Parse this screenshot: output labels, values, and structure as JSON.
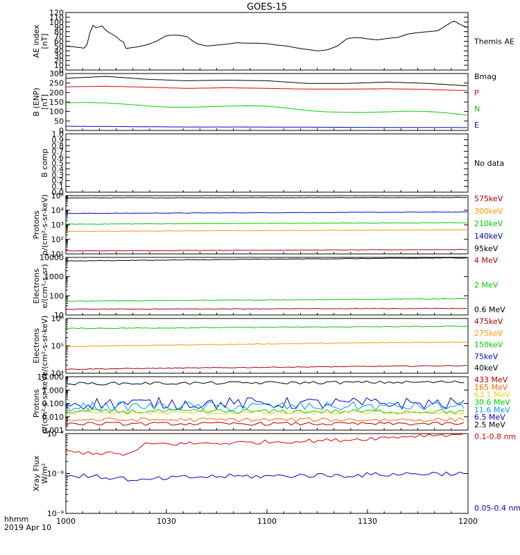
{
  "title": "GOES-15",
  "time_label": {
    "line1": "hhmm",
    "line2": "2019 Apr 10"
  },
  "chart_data": {
    "type": "line",
    "x_ticks": [
      "1000",
      "1030",
      "1100",
      "1130",
      "1200"
    ],
    "x_range": [
      1000,
      1200
    ],
    "panels": [
      {
        "ylabel": [
          "AE index",
          "[nT]"
        ],
        "scale": "linear",
        "ylim": [
          0,
          120
        ],
        "ticks": [
          "0",
          "10",
          "20",
          "30",
          "40",
          "50",
          "60",
          "70",
          "80",
          "90",
          "100",
          "110",
          "120"
        ],
        "legend": [
          {
            "text": "Themis AE",
            "color": "#000000"
          }
        ],
        "series": [
          {
            "name": "Themis AE",
            "color": "#000000",
            "x": [
              1000,
              1005,
              1010,
              1013,
              1015,
              1018,
              1020,
              1025,
              1027,
              1029,
              1030,
              1035,
              1040,
              1045,
              1050,
              1055,
              1060,
              1065,
              1070,
              1075,
              1080,
              1085,
              1090,
              1095,
              1100,
              1105,
              1110,
              1115,
              1120,
              1125,
              1130,
              1135,
              1140,
              1145,
              1150,
              1155,
              1160,
              1165,
              1170,
              1175,
              1180,
              1185,
              1190,
              1193,
              1196,
              1200
            ],
            "y": [
              50,
              48,
              45,
              95,
              88,
              92,
              82,
              70,
              62,
              58,
              45,
              48,
              52,
              60,
              72,
              73,
              70,
              55,
              50,
              52,
              54,
              57,
              56,
              56,
              55,
              52,
              50,
              46,
              43,
              40,
              42,
              50,
              66,
              68,
              65,
              63,
              66,
              68,
              75,
              78,
              80,
              82,
              95,
              103,
              95,
              88
            ]
          }
        ]
      },
      {
        "ylabel": [
          "B (ENP)",
          "[nT]"
        ],
        "scale": "linear",
        "ylim": [
          0,
          300
        ],
        "ticks": [
          "0",
          "50",
          "100",
          "150",
          "200",
          "250",
          "300"
        ],
        "legend": [
          {
            "text": "Bmag",
            "color": "#000000"
          },
          {
            "text": "P",
            "color": "#dd0000"
          },
          {
            "text": "N",
            "color": "#00cc00"
          },
          {
            "text": "E",
            "color": "#0000cc"
          }
        ],
        "series": [
          {
            "name": "Bmag",
            "color": "#000000",
            "x": [
              1000,
              1020,
              1040,
              1060,
              1080,
              1100,
              1120,
              1140,
              1160,
              1180,
              1200
            ],
            "y": [
              275,
              285,
              270,
              262,
              265,
              262,
              248,
              248,
              255,
              248,
              235
            ]
          },
          {
            "name": "P",
            "color": "#dd0000",
            "x": [
              1000,
              1020,
              1040,
              1060,
              1080,
              1100,
              1120,
              1140,
              1160,
              1180,
              1200
            ],
            "y": [
              230,
              233,
              228,
              222,
              225,
              222,
              218,
              218,
              220,
              216,
              210
            ]
          },
          {
            "name": "N",
            "color": "#00cc00",
            "x": [
              1000,
              1010,
              1020,
              1030,
              1040,
              1050,
              1060,
              1070,
              1080,
              1090,
              1100,
              1110,
              1120,
              1130,
              1140,
              1150,
              1160,
              1170,
              1180,
              1190,
              1200
            ],
            "y": [
              145,
              148,
              145,
              138,
              130,
              123,
              122,
              125,
              128,
              130,
              128,
              118,
              105,
              98,
              95,
              95,
              98,
              102,
              100,
              92,
              80
            ]
          },
          {
            "name": "E",
            "color": "#0000cc",
            "x": [
              1000,
              1030,
              1060,
              1090,
              1120,
              1150,
              1200
            ],
            "y": [
              22,
              20,
              18,
              18,
              17,
              16,
              15
            ]
          }
        ]
      },
      {
        "ylabel": [
          "B comp"
        ],
        "scale": "linear",
        "ylim": [
          0,
          1
        ],
        "ticks": [
          "0.0",
          "0.1",
          "0.2",
          "0.3",
          "0.4",
          "0.5",
          "0.6",
          "0.7",
          "0.8",
          "0.9",
          "1.0"
        ],
        "legend": [
          {
            "text": "No data",
            "color": "#000000"
          }
        ],
        "series": []
      },
      {
        "ylabel": [
          "Protons",
          "p/(cm²-s-sr-keV)"
        ],
        "scale": "log",
        "ylim": [
          10,
          100000
        ],
        "ticks": [
          "10¹",
          "10²",
          "10³",
          "10⁴",
          "10⁵"
        ],
        "legend": [
          {
            "text": "575keV",
            "color": "#aa0000"
          },
          {
            "text": "300keV",
            "color": "#ff9900"
          },
          {
            "text": "210keV",
            "color": "#00cc00"
          },
          {
            "text": "140keV",
            "color": "#0000cc"
          },
          {
            "text": "95keV",
            "color": "#000000"
          }
        ],
        "series": [
          {
            "name": "95keV",
            "color": "#000000",
            "x": [
              1000,
              1200
            ],
            "y": [
              70000,
              75000
            ]
          },
          {
            "name": "140keV",
            "color": "#0000cc",
            "x": [
              1000,
              1200
            ],
            "y": [
              6000,
              7500
            ]
          },
          {
            "name": "210keV",
            "color": "#00cc00",
            "x": [
              1000,
              1200
            ],
            "y": [
              1100,
              1400
            ]
          },
          {
            "name": "300keV",
            "color": "#ff9900",
            "x": [
              1000,
              1200
            ],
            "y": [
              350,
              450
            ]
          },
          {
            "name": "575keV",
            "color": "#aa0000",
            "x": [
              1000,
              1200
            ],
            "y": [
              16,
              20
            ]
          }
        ]
      },
      {
        "ylabel": [
          "Electrons",
          "e/(cm²-s-sr)"
        ],
        "scale": "log",
        "ylim": [
          10,
          10000
        ],
        "ticks": [
          "10",
          "100",
          "1000",
          "10000"
        ],
        "legend": [
          {
            "text": "4 MeV",
            "color": "#aa0000"
          },
          {
            "text": "2 MeV",
            "color": "#00cc00"
          },
          {
            "text": "0.6 MeV",
            "color": "#000000"
          }
        ],
        "series": [
          {
            "name": "0.6 MeV",
            "color": "#000000",
            "x": [
              1000,
              1200
            ],
            "y": [
              6500,
              9500
            ]
          },
          {
            "name": "2 MeV",
            "color": "#00cc00",
            "x": [
              1000,
              1200
            ],
            "y": [
              52,
              70
            ]
          },
          {
            "name": "4 MeV",
            "color": "#aa0000",
            "x": [
              1000,
              1200
            ],
            "y": [
              20,
              22
            ]
          }
        ]
      },
      {
        "ylabel": [
          "Electrons",
          "e/(cm²-s-sr-keV)"
        ],
        "scale": "log",
        "ylim": [
          10000,
          1000000
        ],
        "ticks": [
          "10⁴",
          "10⁵",
          "10⁶"
        ],
        "legend": [
          {
            "text": "475keV",
            "color": "#aa0000"
          },
          {
            "text": "275keV",
            "color": "#ff9900"
          },
          {
            "text": "150keV",
            "color": "#00cc00"
          },
          {
            "text": "75keV",
            "color": "#0000cc"
          },
          {
            "text": "40keV",
            "color": "#000000"
          }
        ],
        "series": [
          {
            "name": "150keV",
            "color": "#00cc00",
            "x": [
              1000,
              1200
            ],
            "y": [
              430000,
              520000
            ]
          },
          {
            "name": "275keV",
            "color": "#ff9900",
            "x": [
              1000,
              1200
            ],
            "y": [
              95000,
              140000
            ]
          },
          {
            "name": "475keV",
            "color": "#aa0000",
            "x": [
              1000,
              1200
            ],
            "y": [
              14000,
              19000
            ]
          }
        ]
      },
      {
        "ylabel": [
          "Protons",
          "p/(cm²-s-sr-keV)"
        ],
        "scale": "log",
        "ylim": [
          0.001,
          10
        ],
        "ticks": [
          "0.001",
          "0.010",
          "0.100",
          "1.000",
          "10.000"
        ],
        "legend": [
          {
            "text": "433 MeV",
            "color": "#aa0000"
          },
          {
            "text": "165 MeV",
            "color": "#ff6600"
          },
          {
            "text": "63.1 MeV",
            "color": "#ffcc00"
          },
          {
            "text": "30.6 MeV",
            "color": "#00cc00"
          },
          {
            "text": "11.6 MeV",
            "color": "#0099ff"
          },
          {
            "text": "6.5 MeV",
            "color": "#0000cc"
          },
          {
            "text": "2.5 MeV",
            "color": "#000000"
          }
        ],
        "series": [
          {
            "name": "2.5 MeV",
            "color": "#000000",
            "x": [
              1000,
              1200
            ],
            "y": [
              3.0,
              4.0
            ],
            "noise": 0.22
          },
          {
            "name": "6.5 MeV",
            "color": "#0000cc",
            "x": [
              1000,
              1200
            ],
            "y": [
              0.1,
              0.1
            ],
            "noise": 0.9
          },
          {
            "name": "11.6 MeV",
            "color": "#0099ff",
            "x": [
              1000,
              1200
            ],
            "y": [
              0.06,
              0.06
            ],
            "noise": 0.7
          },
          {
            "name": "30.6 MeV",
            "color": "#00cc00",
            "x": [
              1000,
              1200
            ],
            "y": [
              0.025,
              0.025
            ],
            "noise": 0.35
          },
          {
            "name": "63.1 MeV",
            "color": "#ffcc00",
            "x": [
              1000,
              1200
            ],
            "y": [
              0.02,
              0.02
            ],
            "noise": 0.25
          },
          {
            "name": "165 MeV",
            "color": "#ff6600",
            "x": [
              1000,
              1200
            ],
            "y": [
              0.006,
              0.006
            ],
            "noise": 0.3
          },
          {
            "name": "433 MeV",
            "color": "#aa0000",
            "x": [
              1000,
              1200
            ],
            "y": [
              0.003,
              0.003
            ],
            "noise": 0.25
          }
        ]
      },
      {
        "ylabel": [
          "Xray Flux",
          "W/m²"
        ],
        "scale": "log",
        "ylim": [
          1e-09,
          1e-07
        ],
        "ticks": [
          "10⁻⁹",
          "10⁻⁸",
          "10⁻⁷"
        ],
        "legend": [
          {
            "text": "0.1-0.8 nm",
            "color": "#dd0000"
          },
          {
            "text": "0.05-0.4 nm",
            "color": "#0000cc"
          }
        ],
        "series": [
          {
            "name": "0.1-0.8 nm",
            "color": "#dd0000",
            "x": [
              1000,
              1020,
              1030,
              1035,
              1040,
              1060,
              1080,
              1100,
              1120,
              1140,
              1160,
              1180,
              1200
            ],
            "y": [
              3.5e-08,
              3.2e-08,
              3e-08,
              3.6e-08,
              5.5e-08,
              5.6e-08,
              5.8e-08,
              6.2e-08,
              6.5e-08,
              7e-08,
              8e-08,
              9.2e-08,
              9.5e-08
            ],
            "noise": 0.1
          },
          {
            "name": "0.05-0.4 nm",
            "color": "#0000cc",
            "x": [
              1000,
              1020,
              1030,
              1035,
              1040,
              1060,
              1080,
              1100,
              1120,
              1140,
              1160,
              1180,
              1200
            ],
            "y": [
              9e-09,
              8e-09,
              7.5e-09,
              6e-09,
              7e-09,
              8e-09,
              8.5e-09,
              8.5e-09,
              9e-09,
              9e-09,
              9.5e-09,
              1e-08,
              1e-08
            ],
            "noise": 0.12
          }
        ]
      }
    ]
  }
}
